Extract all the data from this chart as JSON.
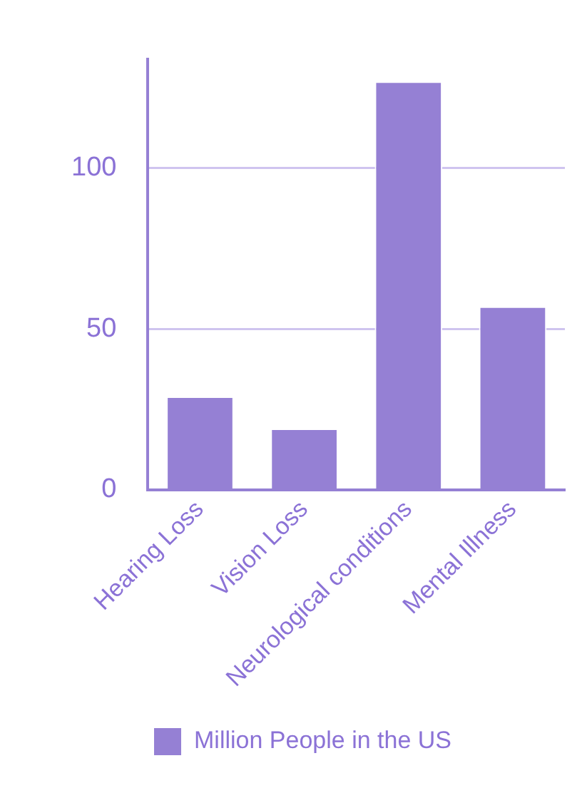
{
  "chart_data": {
    "type": "bar",
    "categories": [
      "Hearing Loss",
      "Vision Loss",
      "Neurological conditions",
      "Mental Illness"
    ],
    "series": [
      {
        "name": "Million People in the US",
        "color": "#9580d4",
        "values": [
          29,
          19,
          127,
          57
        ]
      }
    ],
    "ylim": [
      0,
      134
    ],
    "yticks": [
      0,
      50,
      100
    ],
    "grid": "y",
    "legend": "bottom"
  }
}
